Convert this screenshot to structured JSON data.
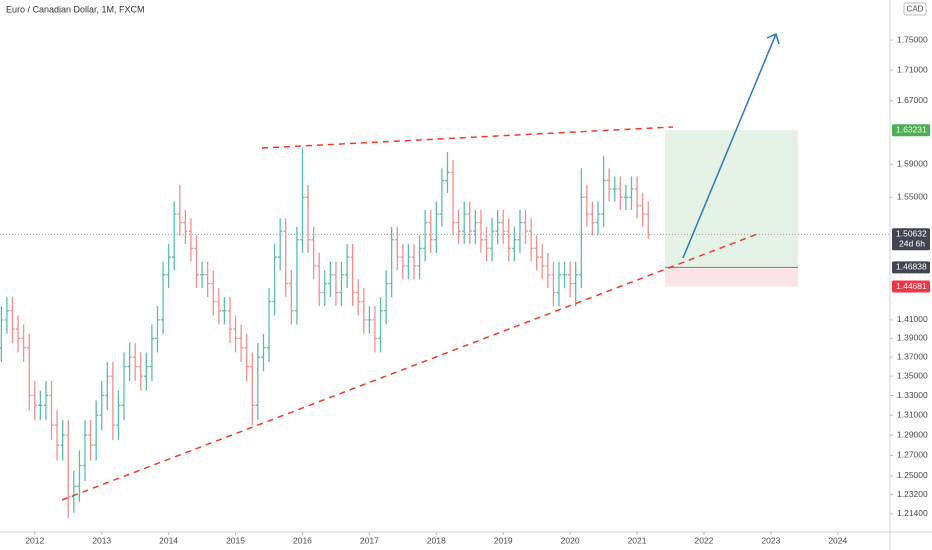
{
  "chart_data": {
    "type": "ohlc",
    "title": "Euro / Canadian Dollar, 1M, FXCM",
    "currency": "CAD",
    "x": [
      2011.5,
      2011.583,
      2011.667,
      2011.75,
      2011.833,
      2011.917,
      2012,
      2012.083,
      2012.167,
      2012.25,
      2012.333,
      2012.417,
      2012.5,
      2012.583,
      2012.667,
      2012.75,
      2012.833,
      2012.917,
      2013,
      2013.083,
      2013.167,
      2013.25,
      2013.333,
      2013.417,
      2013.5,
      2013.583,
      2013.667,
      2013.75,
      2013.833,
      2013.917,
      2014,
      2014.083,
      2014.167,
      2014.25,
      2014.333,
      2014.417,
      2014.5,
      2014.583,
      2014.667,
      2014.75,
      2014.833,
      2014.917,
      2015,
      2015.083,
      2015.167,
      2015.25,
      2015.333,
      2015.417,
      2015.5,
      2015.583,
      2015.667,
      2015.75,
      2015.833,
      2015.917,
      2016,
      2016.083,
      2016.167,
      2016.25,
      2016.333,
      2016.417,
      2016.5,
      2016.583,
      2016.667,
      2016.75,
      2016.833,
      2016.917,
      2017,
      2017.083,
      2017.167,
      2017.25,
      2017.333,
      2017.417,
      2017.5,
      2017.583,
      2017.667,
      2017.75,
      2017.833,
      2017.917,
      2018,
      2018.083,
      2018.167,
      2018.25,
      2018.333,
      2018.417,
      2018.5,
      2018.583,
      2018.667,
      2018.75,
      2018.833,
      2018.917,
      2019,
      2019.083,
      2019.167,
      2019.25,
      2019.333,
      2019.417,
      2019.5,
      2019.583,
      2019.667,
      2019.75,
      2019.833,
      2019.917,
      2020,
      2020.083,
      2020.167,
      2020.25,
      2020.333,
      2020.417,
      2020.5,
      2020.583,
      2020.667,
      2020.75,
      2020.833,
      2020.917,
      2021,
      2021.083,
      2021.167
    ],
    "open": [
      1.38,
      1.41,
      1.42,
      1.4,
      1.39,
      1.38,
      1.33,
      1.32,
      1.32,
      1.33,
      1.3,
      1.28,
      1.29,
      1.23,
      1.24,
      1.26,
      1.29,
      1.28,
      1.31,
      1.33,
      1.35,
      1.3,
      1.32,
      1.36,
      1.37,
      1.36,
      1.35,
      1.36,
      1.39,
      1.41,
      1.46,
      1.48,
      1.53,
      1.52,
      1.51,
      1.49,
      1.46,
      1.46,
      1.45,
      1.43,
      1.42,
      1.42,
      1.4,
      1.39,
      1.38,
      1.36,
      1.32,
      1.37,
      1.38,
      1.43,
      1.48,
      1.51,
      1.45,
      1.42,
      1.5,
      1.55,
      1.5,
      1.47,
      1.44,
      1.45,
      1.46,
      1.44,
      1.46,
      1.48,
      1.44,
      1.43,
      1.41,
      1.41,
      1.39,
      1.42,
      1.45,
      1.5,
      1.48,
      1.47,
      1.48,
      1.47,
      1.49,
      1.52,
      1.5,
      1.53,
      1.57,
      1.58,
      1.52,
      1.51,
      1.53,
      1.51,
      1.52,
      1.5,
      1.49,
      1.51,
      1.52,
      1.51,
      1.49,
      1.5,
      1.52,
      1.51,
      1.49,
      1.48,
      1.47,
      1.46,
      1.44,
      1.46,
      1.46,
      1.45,
      1.46,
      1.55,
      1.53,
      1.52,
      1.53,
      1.57,
      1.56,
      1.56,
      1.55,
      1.55,
      1.56,
      1.54,
      1.53
    ],
    "high": [
      1.425,
      1.435,
      1.435,
      1.415,
      1.405,
      1.395,
      1.345,
      1.335,
      1.345,
      1.345,
      1.315,
      1.305,
      1.305,
      1.255,
      1.275,
      1.305,
      1.305,
      1.325,
      1.345,
      1.365,
      1.365,
      1.335,
      1.375,
      1.385,
      1.385,
      1.375,
      1.375,
      1.405,
      1.425,
      1.475,
      1.495,
      1.545,
      1.565,
      1.535,
      1.525,
      1.505,
      1.475,
      1.475,
      1.465,
      1.445,
      1.435,
      1.435,
      1.415,
      1.405,
      1.395,
      1.375,
      1.385,
      1.395,
      1.445,
      1.495,
      1.525,
      1.525,
      1.465,
      1.515,
      1.61,
      1.565,
      1.515,
      1.485,
      1.465,
      1.475,
      1.475,
      1.475,
      1.495,
      1.495,
      1.455,
      1.445,
      1.425,
      1.425,
      1.435,
      1.465,
      1.515,
      1.515,
      1.495,
      1.495,
      1.495,
      1.505,
      1.535,
      1.535,
      1.545,
      1.585,
      1.605,
      1.595,
      1.535,
      1.545,
      1.545,
      1.535,
      1.535,
      1.515,
      1.525,
      1.535,
      1.535,
      1.525,
      1.515,
      1.535,
      1.535,
      1.525,
      1.505,
      1.495,
      1.485,
      1.475,
      1.475,
      1.475,
      1.475,
      1.475,
      1.585,
      1.565,
      1.545,
      1.545,
      1.6,
      1.585,
      1.575,
      1.575,
      1.565,
      1.575,
      1.575,
      1.555,
      1.545
    ],
    "low": [
      1.365,
      1.395,
      1.385,
      1.375,
      1.365,
      1.315,
      1.305,
      1.305,
      1.305,
      1.285,
      1.265,
      1.265,
      1.21,
      1.215,
      1.225,
      1.245,
      1.265,
      1.265,
      1.295,
      1.315,
      1.285,
      1.285,
      1.305,
      1.345,
      1.345,
      1.335,
      1.335,
      1.345,
      1.375,
      1.395,
      1.445,
      1.465,
      1.505,
      1.495,
      1.475,
      1.445,
      1.445,
      1.435,
      1.415,
      1.405,
      1.405,
      1.385,
      1.375,
      1.365,
      1.345,
      1.3,
      1.305,
      1.355,
      1.365,
      1.415,
      1.465,
      1.435,
      1.405,
      1.405,
      1.485,
      1.485,
      1.455,
      1.425,
      1.425,
      1.435,
      1.425,
      1.425,
      1.445,
      1.425,
      1.415,
      1.395,
      1.395,
      1.375,
      1.375,
      1.405,
      1.435,
      1.465,
      1.455,
      1.455,
      1.455,
      1.455,
      1.475,
      1.485,
      1.485,
      1.515,
      1.555,
      1.505,
      1.495,
      1.495,
      1.495,
      1.495,
      1.485,
      1.475,
      1.475,
      1.495,
      1.495,
      1.475,
      1.475,
      1.485,
      1.495,
      1.475,
      1.465,
      1.455,
      1.445,
      1.425,
      1.425,
      1.445,
      1.435,
      1.425,
      1.445,
      1.515,
      1.505,
      1.505,
      1.515,
      1.545,
      1.545,
      1.535,
      1.535,
      1.535,
      1.525,
      1.515,
      1.501
    ],
    "close": [
      1.41,
      1.42,
      1.4,
      1.39,
      1.38,
      1.33,
      1.32,
      1.32,
      1.33,
      1.3,
      1.28,
      1.29,
      1.23,
      1.24,
      1.26,
      1.29,
      1.28,
      1.31,
      1.33,
      1.35,
      1.3,
      1.32,
      1.36,
      1.37,
      1.36,
      1.35,
      1.36,
      1.39,
      1.41,
      1.46,
      1.48,
      1.53,
      1.52,
      1.51,
      1.49,
      1.46,
      1.46,
      1.45,
      1.43,
      1.42,
      1.42,
      1.4,
      1.39,
      1.38,
      1.36,
      1.32,
      1.37,
      1.38,
      1.43,
      1.48,
      1.51,
      1.45,
      1.42,
      1.5,
      1.55,
      1.5,
      1.47,
      1.44,
      1.45,
      1.46,
      1.44,
      1.46,
      1.48,
      1.44,
      1.43,
      1.41,
      1.41,
      1.39,
      1.42,
      1.45,
      1.5,
      1.48,
      1.47,
      1.48,
      1.47,
      1.49,
      1.52,
      1.5,
      1.53,
      1.57,
      1.58,
      1.52,
      1.51,
      1.53,
      1.51,
      1.52,
      1.5,
      1.49,
      1.51,
      1.52,
      1.51,
      1.49,
      1.5,
      1.52,
      1.51,
      1.49,
      1.48,
      1.47,
      1.46,
      1.44,
      1.46,
      1.46,
      1.45,
      1.46,
      1.55,
      1.53,
      1.52,
      1.53,
      1.57,
      1.56,
      1.56,
      1.55,
      1.55,
      1.56,
      1.54,
      1.53,
      1.506
    ],
    "up_color": "#5cbcb0",
    "down_color": "#ef8f8f",
    "xlim": [
      2011.48,
      2024.78
    ],
    "xticks": [
      2012,
      2013,
      2014,
      2015,
      2016,
      2017,
      2018,
      2019,
      2020,
      2021,
      2022,
      2023,
      2024
    ],
    "ylim": [
      1.197,
      1.805
    ],
    "log_y": true,
    "grid": false,
    "yticks": [
      {
        "value": 1.75,
        "label": "1.75000"
      },
      {
        "value": 1.71,
        "label": "1.71000"
      },
      {
        "value": 1.67,
        "label": "1.67000"
      },
      {
        "value": 1.59,
        "label": "1.59000"
      },
      {
        "value": 1.55,
        "label": "1.55000"
      },
      {
        "value": 1.41,
        "label": "1.41000"
      },
      {
        "value": 1.39,
        "label": "1.39000"
      },
      {
        "value": 1.37,
        "label": "1.37000"
      },
      {
        "value": 1.35,
        "label": "1.35000"
      },
      {
        "value": 1.33,
        "label": "1.33000"
      },
      {
        "value": 1.31,
        "label": "1.31000"
      },
      {
        "value": 1.29,
        "label": "1.29000"
      },
      {
        "value": 1.27,
        "label": "1.27000"
      },
      {
        "value": 1.25,
        "label": "1.25000"
      },
      {
        "value": 1.232,
        "label": "1.23200"
      },
      {
        "value": 1.214,
        "label": "1.21400"
      }
    ],
    "last_price": 1.50632,
    "countdown": "24d 6h",
    "position": {
      "target": 1.63231,
      "entry": 1.46838,
      "stop": 1.44681
    }
  }
}
